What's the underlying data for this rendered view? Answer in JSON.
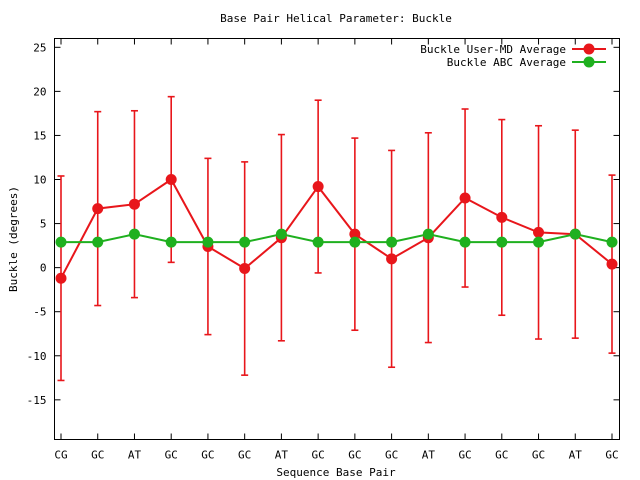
{
  "chart_data": {
    "type": "line",
    "title": "Base Pair Helical Parameter: Buckle",
    "xlabel": "Sequence Base Pair",
    "ylabel": "Buckle (degrees)",
    "categories": [
      "CG",
      "GC",
      "AT",
      "GC",
      "GC",
      "GC",
      "AT",
      "GC",
      "GC",
      "GC",
      "AT",
      "GC",
      "GC",
      "GC",
      "AT",
      "GC"
    ],
    "ylim": [
      -19.5,
      26
    ],
    "yticks": [
      -15,
      -10,
      -5,
      0,
      5,
      10,
      15,
      20,
      25
    ],
    "ytick_labels": [
      "-15",
      "-10",
      "-5",
      "0",
      "5",
      "10",
      "15",
      "20",
      "25"
    ],
    "grid": false,
    "legend_position": "top-right",
    "series": [
      {
        "name": "Buckle User-MD Average",
        "color": "#e8161b",
        "values": [
          -1.2,
          6.7,
          7.2,
          10.0,
          2.4,
          -0.1,
          3.4,
          9.2,
          3.8,
          1.0,
          3.4,
          7.9,
          5.7,
          4.0,
          3.8,
          0.4
        ],
        "error": [
          11.6,
          11.0,
          10.6,
          9.4,
          10.0,
          12.1,
          11.7,
          9.8,
          10.9,
          12.3,
          11.9,
          10.1,
          11.1,
          12.1,
          11.8,
          10.1
        ]
      },
      {
        "name": "Buckle ABC Average",
        "color": "#1fb01f",
        "values": [
          2.9,
          2.9,
          3.8,
          2.9,
          2.9,
          2.9,
          3.8,
          2.9,
          2.9,
          2.9,
          3.8,
          2.9,
          2.9,
          2.9,
          3.8,
          2.9
        ]
      }
    ]
  }
}
